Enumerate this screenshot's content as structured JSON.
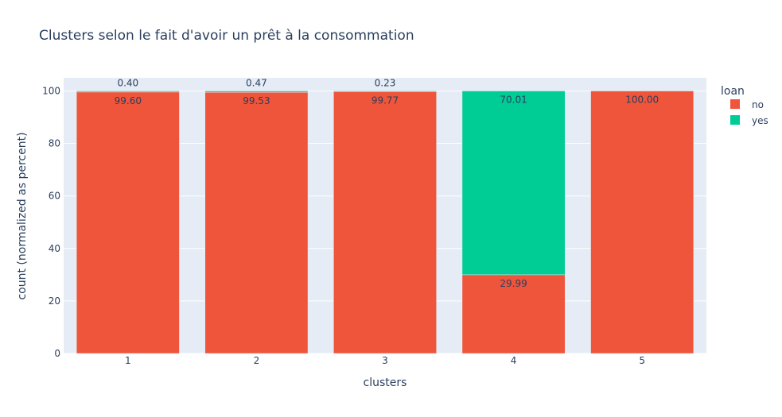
{
  "chart_data": {
    "type": "bar",
    "barmode": "stack",
    "title": "Clusters selon le fait d'avoir un prêt à la consommation",
    "xlabel": "clusters",
    "ylabel": "count (normalized as percent)",
    "categories": [
      "1",
      "2",
      "3",
      "4",
      "5"
    ],
    "ylim": [
      0,
      105
    ],
    "yticks": [
      "0",
      "20",
      "40",
      "60",
      "80",
      "100"
    ],
    "grid": true,
    "legend_position": "top-right",
    "legend_title": "loan",
    "series": [
      {
        "name": "no",
        "color": "#EF553B",
        "values": [
          99.6,
          99.53,
          99.77,
          29.99,
          100.0
        ],
        "labels": [
          "99.60",
          "99.53",
          "99.77",
          "29.99",
          "100.00"
        ]
      },
      {
        "name": "yes",
        "color": "#00CC96",
        "values": [
          0.4,
          0.47,
          0.23,
          70.01,
          0
        ],
        "labels": [
          "0.40",
          "0.47",
          "0.23",
          "70.01",
          ""
        ]
      }
    ],
    "colors": {
      "plot_bg": "#E5ECF6",
      "text": "#2a3f5f",
      "grid": "#ffffff"
    }
  }
}
